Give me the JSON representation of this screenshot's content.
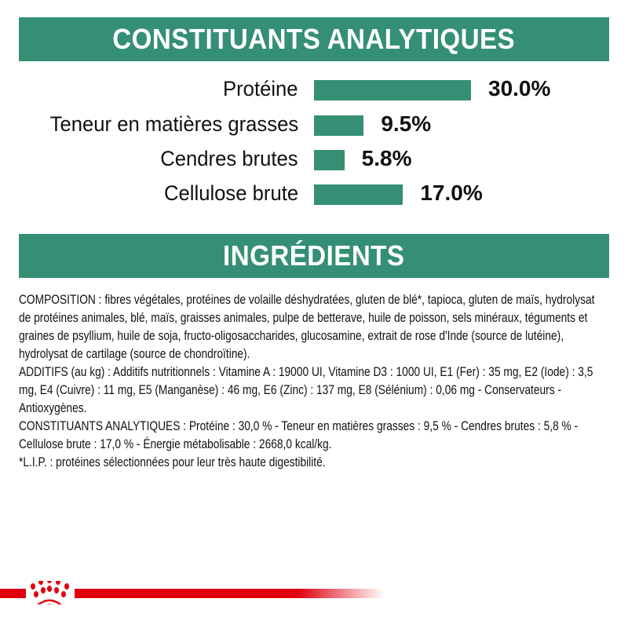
{
  "header1": "CONSTITUANTS ANALYTIQUES",
  "header2": "INGRÉDIENTS",
  "colors": {
    "accent": "#358f75",
    "brand_red": "#e0000e"
  },
  "chart_data": {
    "type": "bar",
    "orientation": "horizontal",
    "categories": [
      "Protéine",
      "Teneur en matières grasses",
      "Cendres brutes",
      "Cellulose brute"
    ],
    "values": [
      30.0,
      9.5,
      5.8,
      17.0
    ],
    "value_labels": [
      "30.0%",
      "9.5%",
      "5.8%",
      "17.0%"
    ],
    "unit": "%",
    "grid": false
  },
  "ingredients": {
    "composition": "COMPOSITION : fibres végétales, protéines de volaille déshydratées, gluten de blé*, tapioca, gluten de maïs, hydrolysat de protéines animales, blé, maïs, graisses animales, pulpe de betterave, huile de poisson, sels minéraux, téguments et graines de psyllium, huile de soja, fructo-oligosaccharides, glucosamine, extrait de rose d'Inde (source de lutéine), hydrolysat de cartilage (source de chondroïtine).",
    "additifs": "ADDITIFS (au kg) : Additifs nutritionnels : Vitamine A : 19000 UI, Vitamine D3 : 1000 UI, E1 (Fer) : 35 mg, E2 (Iode) : 3,5 mg, E4 (Cuivre) : 11 mg, E5 (Manganèse) : 46 mg, E6 (Zinc) : 137 mg, E8 (Sélénium) : 0,06 mg - Conservateurs - Antioxygènes.",
    "constituants": "CONSTITUANTS ANALYTIQUES : Protéine : 30,0 % - Teneur en matières grasses : 9,5 % - Cendres brutes : 5,8 % - Cellulose brute : 17,0 % - Énergie métabolisable : 2668,0 kcal/kg.",
    "note": "*L.I.P. : protéines sélectionnées pour leur très haute digestibilité."
  },
  "logo": {
    "icon": "royal-canin-crown-icon"
  }
}
